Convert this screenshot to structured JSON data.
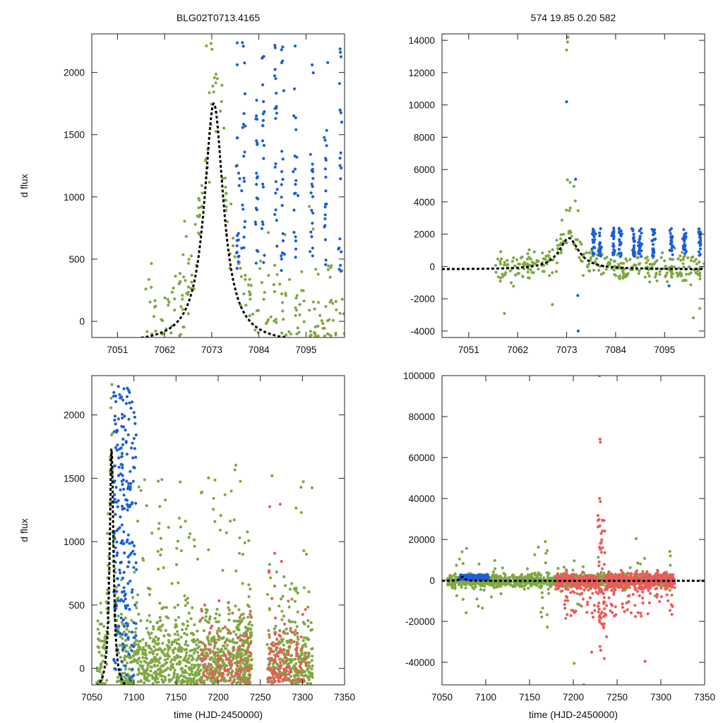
{
  "figure": {
    "title_left": "BLG02T0713.4165",
    "title_right": "574  19.85  0.20  582"
  },
  "colors": {
    "green": "#7fa843",
    "blue": "#1a5fd6",
    "red": "#ea5b5b",
    "model": "#000000"
  },
  "chart_data": [
    {
      "id": "top-left",
      "type": "scatter",
      "title": "BLG02T0713.4165",
      "xlabel": "",
      "ylabel": "d flux",
      "xlim": [
        7045,
        7104
      ],
      "ylim": [
        -130,
        2310
      ],
      "xticks": [
        7051,
        7062,
        7073,
        7084,
        7095
      ],
      "xtick_labels": [
        "7051",
        "7062",
        "7073",
        "7084",
        "7095"
      ],
      "yticks": [
        0,
        500,
        1000,
        1500,
        2000
      ],
      "ytick_labels": [
        "0",
        "500",
        "1000",
        "1500",
        "2000"
      ],
      "model": {
        "t0": 7073.5,
        "peak": 1750,
        "base": -180,
        "width": 2.7,
        "style": "dashed"
      },
      "series": [
        {
          "name": "green",
          "color": "#7fa843",
          "generator": "peak_green",
          "n": 230,
          "xrange": [
            7057,
            7104
          ]
        },
        {
          "name": "blue",
          "color": "#1a5fd6",
          "generator": "clusters_blue",
          "n": 200,
          "clusters": [
            7079,
            7080.5,
            7083.5,
            7085,
            7088,
            7089.5,
            7092.5,
            7096.5,
            7099.5,
            7103
          ]
        }
      ]
    },
    {
      "id": "top-right",
      "type": "scatter",
      "title": "574  19.85  0.20  582",
      "xlabel": "",
      "ylabel": "",
      "xlim": [
        7045,
        7104
      ],
      "ylim": [
        -4400,
        14400
      ],
      "xticks": [
        7051,
        7062,
        7073,
        7084,
        7095
      ],
      "xtick_labels": [
        "7051",
        "7062",
        "7073",
        "7084",
        "7095"
      ],
      "yticks": [
        -4000,
        -2000,
        0,
        2000,
        4000,
        6000,
        8000,
        10000,
        12000,
        14000
      ],
      "ytick_labels": [
        "-4000",
        "-2000",
        "0",
        "2000",
        "4000",
        "6000",
        "8000",
        "10000",
        "12000",
        "14000"
      ],
      "model": {
        "t0": 7073.5,
        "peak": 1750,
        "base": -180,
        "width": 2.7,
        "style": "dashed"
      },
      "series": [
        {
          "name": "green",
          "color": "#7fa843",
          "generator": "wide_green",
          "n": 330,
          "xrange": [
            7057,
            7104
          ]
        },
        {
          "name": "blue",
          "color": "#1a5fd6",
          "generator": "wide_blue",
          "n": 220,
          "clusters": [
            7079,
            7080.5,
            7083.5,
            7085,
            7088,
            7089.5,
            7092.5,
            7096.5,
            7099.5,
            7103
          ]
        }
      ]
    },
    {
      "id": "bottom-left",
      "type": "scatter",
      "title": "",
      "xlabel": "time (HJD-2450000)",
      "ylabel": "d flux",
      "xlim": [
        7050,
        7350
      ],
      "ylim": [
        -130,
        2310
      ],
      "xticks": [
        7050,
        7100,
        7150,
        7200,
        7250,
        7300,
        7350
      ],
      "xtick_labels": [
        "7050",
        "7100",
        "7150",
        "7200",
        "7250",
        "7300",
        "7350"
      ],
      "yticks": [
        0,
        500,
        1000,
        1500,
        2000
      ],
      "ytick_labels": [
        "0",
        "500",
        "1000",
        "1500",
        "2000"
      ],
      "model": {
        "t0": 7073.5,
        "peak": 1750,
        "base": -180,
        "width": 2.7,
        "style": "dashed"
      },
      "series": [
        {
          "name": "green",
          "color": "#7fa843",
          "generator": "season_green",
          "n": 1500,
          "xrange": [
            7056,
            7312
          ]
        },
        {
          "name": "blue",
          "color": "#1a5fd6",
          "generator": "season_blue",
          "n": 230,
          "xrange": [
            7076,
            7103
          ]
        },
        {
          "name": "red",
          "color": "#ea5b5b",
          "generator": "season_red",
          "n": 250,
          "xrange": [
            7178,
            7305
          ]
        }
      ]
    },
    {
      "id": "bottom-right",
      "type": "scatter",
      "title": "",
      "xlabel": "time (HJD-2450000)",
      "ylabel": "",
      "xlim": [
        7050,
        7350
      ],
      "ylim": [
        -51000,
        100000
      ],
      "xticks": [
        7050,
        7100,
        7150,
        7200,
        7250,
        7300,
        7350
      ],
      "xtick_labels": [
        "7050",
        "7100",
        "7150",
        "7200",
        "7250",
        "7300",
        "7350"
      ],
      "yticks": [
        -40000,
        -20000,
        0,
        20000,
        40000,
        60000,
        80000,
        100000
      ],
      "ytick_labels": [
        "-40000",
        "-20000",
        "0",
        "20000",
        "40000",
        "60000",
        "80000",
        "100000"
      ],
      "model": {
        "t0": 7073.5,
        "peak": 1750,
        "base": -180,
        "width": 2.7,
        "style": "dashed"
      },
      "series": [
        {
          "name": "green",
          "color": "#7fa843",
          "generator": "big_green",
          "n": 1400,
          "xrange": [
            7056,
            7312
          ]
        },
        {
          "name": "blue",
          "color": "#1a5fd6",
          "generator": "big_blue",
          "n": 230,
          "xrange": [
            7070,
            7103
          ]
        },
        {
          "name": "red",
          "color": "#ea5b5b",
          "generator": "big_red",
          "n": 900,
          "xrange": [
            7180,
            7316
          ]
        }
      ]
    }
  ]
}
